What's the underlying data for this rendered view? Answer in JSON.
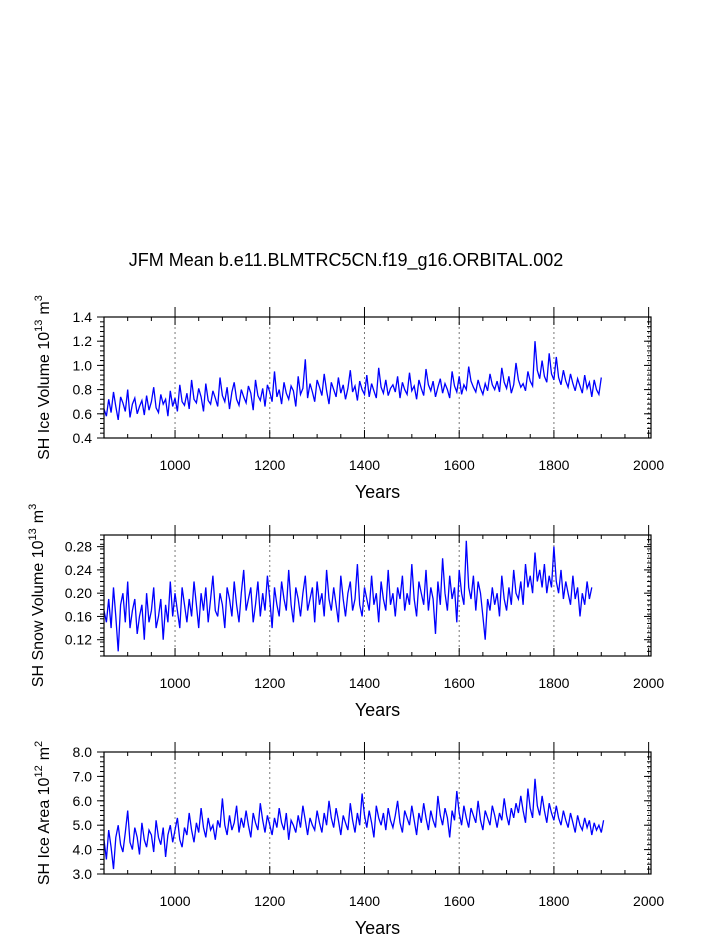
{
  "figure_title": "JFM Mean b.e11.BLMTRC5CN.f19_g16.ORBITAL.002",
  "colors": {
    "series": "#0000ff",
    "frame": "#000000",
    "grid": "#777777",
    "background": "#ffffff"
  },
  "chart_data": [
    {
      "type": "line",
      "title": "JFM Mean b.e11.BLMTRC5CN.f19_g16.ORBITAL.002",
      "xlabel": "Years",
      "ylabel_main": "SH Ice Volume 10",
      "ylabel_exp": "13",
      "ylabel_unit": "m",
      "ylabel_unit_exp": "3",
      "xlim": [
        850,
        2005
      ],
      "ylim": [
        0.4,
        1.4
      ],
      "x_ticks": [
        1000,
        1200,
        1400,
        1600,
        1800,
        2000
      ],
      "x_tick_labels": [
        "1000",
        "1200",
        "1400",
        "1600",
        "1800",
        "2000"
      ],
      "y_ticks": [
        0.4,
        0.6,
        0.8,
        1.0,
        1.2,
        1.4
      ],
      "y_tick_labels": [
        "0.4",
        "0.6",
        "0.8",
        "1.0",
        "1.2",
        "1.4"
      ],
      "vertical_grid": [
        1000,
        1200,
        1400,
        1600,
        1800,
        2000
      ],
      "series": [
        {
          "name": "SH Ice Volume",
          "x_start": 850,
          "x_step": 5,
          "values": [
            0.64,
            0.58,
            0.72,
            0.61,
            0.78,
            0.66,
            0.55,
            0.74,
            0.69,
            0.62,
            0.8,
            0.57,
            0.68,
            0.73,
            0.6,
            0.66,
            0.71,
            0.59,
            0.75,
            0.63,
            0.7,
            0.82,
            0.65,
            0.61,
            0.76,
            0.68,
            0.72,
            0.58,
            0.79,
            0.66,
            0.73,
            0.62,
            0.84,
            0.7,
            0.67,
            0.77,
            0.64,
            0.88,
            0.72,
            0.69,
            0.81,
            0.74,
            0.62,
            0.85,
            0.71,
            0.68,
            0.79,
            0.73,
            0.66,
            0.9,
            0.75,
            0.7,
            0.82,
            0.64,
            0.78,
            0.86,
            0.72,
            0.67,
            0.8,
            0.74,
            0.69,
            0.83,
            0.77,
            0.63,
            0.88,
            0.75,
            0.71,
            0.81,
            0.66,
            0.84,
            0.78,
            0.7,
            0.95,
            0.74,
            0.8,
            0.68,
            0.86,
            0.77,
            0.72,
            0.83,
            0.79,
            0.66,
            0.91,
            0.76,
            0.81,
            1.05,
            0.73,
            0.85,
            0.78,
            0.7,
            0.88,
            0.82,
            0.75,
            0.93,
            0.79,
            0.68,
            0.86,
            0.8,
            0.74,
            0.9,
            0.77,
            0.84,
            0.72,
            0.81,
            0.96,
            0.78,
            0.83,
            0.71,
            0.87,
            0.8,
            0.76,
            0.92,
            0.74,
            0.85,
            0.79,
            0.73,
            0.98,
            0.82,
            0.77,
            0.88,
            0.75,
            0.81,
            0.84,
            0.78,
            0.91,
            0.73,
            0.86,
            0.8,
            0.76,
            0.94,
            0.79,
            0.83,
            0.72,
            0.88,
            0.81,
            0.75,
            0.97,
            0.84,
            0.79,
            0.87,
            0.74,
            0.82,
            0.89,
            0.77,
            0.85,
            0.8,
            0.73,
            0.95,
            0.83,
            0.78,
            0.91,
            0.76,
            0.84,
            0.8,
            0.99,
            0.87,
            0.82,
            0.78,
            0.88,
            0.81,
            0.76,
            0.85,
            0.79,
            0.93,
            0.84,
            0.8,
            0.87,
            0.78,
            0.98,
            0.86,
            0.81,
            0.91,
            0.77,
            0.84,
            1.02,
            0.88,
            0.82,
            0.85,
            0.79,
            0.95,
            0.87,
            0.83,
            1.2,
            0.96,
            0.89,
            1.04,
            0.91,
            0.86,
            1.1,
            0.93,
            0.88,
            1.07,
            0.9,
            0.84,
            0.96,
            0.87,
            0.82,
            0.93,
            0.85,
            0.79,
            0.89,
            0.83,
            0.77,
            0.92,
            0.81,
            0.86,
            0.74,
            0.88,
            0.8,
            0.76,
            0.9
          ]
        }
      ]
    },
    {
      "type": "line",
      "title": "",
      "xlabel": "Years",
      "ylabel_main": "SH Snow Volume 10",
      "ylabel_exp": "13",
      "ylabel_unit": "m",
      "ylabel_unit_exp": "3",
      "xlim": [
        850,
        2005
      ],
      "ylim": [
        0.092,
        0.3
      ],
      "x_ticks": [
        1000,
        1200,
        1400,
        1600,
        1800,
        2000
      ],
      "x_tick_labels": [
        "1000",
        "1200",
        "1400",
        "1600",
        "1800",
        "2000"
      ],
      "y_ticks": [
        0.12,
        0.16,
        0.2,
        0.24,
        0.28
      ],
      "y_tick_labels": [
        "0.12",
        "0.16",
        "0.20",
        "0.24",
        "0.28"
      ],
      "vertical_grid": [
        1000,
        1200,
        1400,
        1600,
        1800,
        2000
      ],
      "series": [
        {
          "name": "SH Snow Volume",
          "x_start": 850,
          "x_step": 5,
          "values": [
            0.17,
            0.15,
            0.19,
            0.14,
            0.21,
            0.16,
            0.1,
            0.18,
            0.2,
            0.15,
            0.22,
            0.14,
            0.17,
            0.19,
            0.13,
            0.16,
            0.18,
            0.12,
            0.2,
            0.15,
            0.17,
            0.21,
            0.14,
            0.16,
            0.19,
            0.12,
            0.18,
            0.15,
            0.22,
            0.16,
            0.2,
            0.17,
            0.14,
            0.21,
            0.18,
            0.15,
            0.19,
            0.16,
            0.22,
            0.18,
            0.14,
            0.2,
            0.17,
            0.21,
            0.15,
            0.19,
            0.23,
            0.17,
            0.16,
            0.2,
            0.18,
            0.14,
            0.21,
            0.19,
            0.16,
            0.22,
            0.18,
            0.15,
            0.2,
            0.24,
            0.17,
            0.19,
            0.21,
            0.15,
            0.18,
            0.22,
            0.16,
            0.2,
            0.17,
            0.23,
            0.19,
            0.14,
            0.21,
            0.18,
            0.16,
            0.22,
            0.19,
            0.17,
            0.24,
            0.18,
            0.15,
            0.21,
            0.19,
            0.16,
            0.2,
            0.23,
            0.17,
            0.19,
            0.21,
            0.15,
            0.22,
            0.18,
            0.2,
            0.16,
            0.24,
            0.19,
            0.17,
            0.21,
            0.18,
            0.15,
            0.23,
            0.19,
            0.16,
            0.2,
            0.22,
            0.17,
            0.19,
            0.25,
            0.18,
            0.16,
            0.21,
            0.19,
            0.17,
            0.23,
            0.18,
            0.2,
            0.15,
            0.22,
            0.19,
            0.17,
            0.24,
            0.18,
            0.2,
            0.16,
            0.21,
            0.19,
            0.23,
            0.17,
            0.2,
            0.18,
            0.25,
            0.19,
            0.16,
            0.22,
            0.2,
            0.18,
            0.24,
            0.17,
            0.21,
            0.19,
            0.13,
            0.22,
            0.18,
            0.26,
            0.2,
            0.17,
            0.23,
            0.19,
            0.21,
            0.15,
            0.24,
            0.2,
            0.18,
            0.29,
            0.21,
            0.19,
            0.23,
            0.17,
            0.22,
            0.2,
            0.16,
            0.12,
            0.19,
            0.17,
            0.21,
            0.18,
            0.2,
            0.16,
            0.23,
            0.19,
            0.17,
            0.21,
            0.18,
            0.24,
            0.2,
            0.19,
            0.22,
            0.18,
            0.25,
            0.21,
            0.23,
            0.2,
            0.27,
            0.22,
            0.24,
            0.21,
            0.25,
            0.2,
            0.23,
            0.21,
            0.28,
            0.22,
            0.2,
            0.24,
            0.19,
            0.22,
            0.2,
            0.18,
            0.23,
            0.19,
            0.21,
            0.16,
            0.2,
            0.18,
            0.22,
            0.19,
            0.21
          ]
        }
      ]
    },
    {
      "type": "line",
      "title": "",
      "xlabel": "Years",
      "ylabel_main": "SH Ice Area 10",
      "ylabel_exp": "12",
      "ylabel_unit": "m",
      "ylabel_unit_exp": "2",
      "xlim": [
        850,
        2005
      ],
      "ylim": [
        3.0,
        8.0
      ],
      "x_ticks": [
        1000,
        1200,
        1400,
        1600,
        1800,
        2000
      ],
      "x_tick_labels": [
        "1000",
        "1200",
        "1400",
        "1600",
        "1800",
        "2000"
      ],
      "y_ticks": [
        3.0,
        4.0,
        5.0,
        6.0,
        7.0,
        8.0
      ],
      "y_tick_labels": [
        "3.0",
        "4.0",
        "5.0",
        "6.0",
        "7.0",
        "8.0"
      ],
      "vertical_grid": [
        1000,
        1200,
        1400,
        1600,
        1800,
        2000
      ],
      "series": [
        {
          "name": "SH Ice Area",
          "x_start": 850,
          "x_step": 5,
          "values": [
            4.4,
            3.6,
            4.8,
            4.1,
            3.2,
            4.5,
            5.0,
            4.2,
            3.9,
            4.7,
            5.6,
            4.3,
            4.0,
            4.9,
            4.5,
            3.8,
            5.1,
            4.4,
            4.1,
            4.8,
            4.6,
            3.9,
            5.2,
            4.5,
            4.2,
            4.9,
            3.7,
            4.6,
            5.0,
            4.3,
            4.8,
            5.3,
            4.4,
            4.1,
            4.9,
            4.6,
            5.5,
            4.8,
            4.3,
            5.1,
            4.7,
            5.7,
            4.9,
            4.5,
            5.3,
            4.8,
            5.0,
            4.4,
            5.2,
            4.9,
            6.1,
            5.0,
            4.6,
            5.4,
            4.8,
            5.1,
            5.8,
            4.7,
            5.3,
            4.9,
            5.6,
            5.0,
            4.5,
            5.5,
            5.1,
            4.8,
            5.9,
            5.2,
            4.7,
            5.4,
            5.0,
            4.6,
            5.3,
            4.9,
            5.7,
            5.1,
            4.8,
            5.5,
            4.4,
            5.2,
            5.0,
            4.7,
            5.4,
            4.9,
            5.8,
            5.2,
            4.6,
            5.3,
            5.0,
            4.8,
            5.6,
            5.1,
            4.7,
            5.5,
            5.0,
            6.0,
            5.3,
            4.9,
            5.7,
            5.2,
            4.6,
            5.4,
            5.1,
            4.8,
            5.9,
            5.2,
            4.7,
            5.5,
            5.0,
            6.3,
            5.4,
            4.9,
            5.6,
            5.1,
            4.5,
            5.8,
            5.3,
            5.0,
            5.5,
            4.8,
            5.7,
            5.2,
            4.9,
            5.4,
            6.0,
            5.1,
            4.7,
            5.6,
            5.3,
            5.0,
            5.8,
            5.2,
            4.6,
            5.5,
            5.1,
            5.9,
            5.3,
            4.8,
            5.6,
            5.2,
            4.9,
            6.2,
            5.4,
            5.0,
            5.7,
            5.3,
            4.5,
            5.6,
            5.2,
            6.4,
            5.5,
            5.0,
            5.8,
            5.3,
            4.9,
            5.7,
            5.4,
            5.1,
            6.0,
            5.2,
            4.8,
            5.6,
            5.3,
            5.0,
            5.8,
            5.4,
            4.9,
            5.5,
            5.2,
            6.1,
            5.4,
            5.0,
            5.7,
            5.3,
            5.9,
            5.5,
            6.2,
            5.6,
            5.1,
            6.5,
            5.7,
            5.3,
            6.9,
            5.8,
            5.4,
            6.2,
            5.6,
            5.1,
            5.9,
            5.5,
            5.2,
            5.8,
            5.3,
            5.0,
            5.6,
            5.2,
            4.9,
            5.5,
            5.1,
            4.7,
            5.4,
            5.0,
            4.8,
            5.3,
            4.9,
            5.2,
            4.6,
            5.1,
            4.8,
            5.0,
            4.7,
            5.2
          ]
        }
      ]
    }
  ]
}
